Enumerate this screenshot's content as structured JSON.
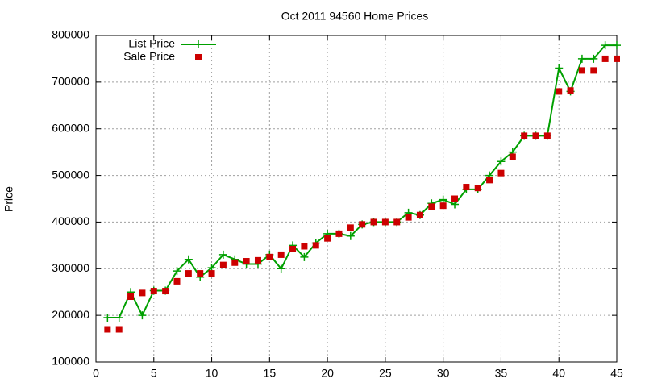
{
  "chart_data": {
    "type": "line",
    "title": "Oct 2011 94560 Home Prices",
    "y_label": "Price",
    "x": [
      1,
      2,
      3,
      4,
      5,
      6,
      7,
      8,
      9,
      10,
      11,
      12,
      13,
      14,
      15,
      16,
      17,
      18,
      19,
      20,
      21,
      22,
      23,
      24,
      25,
      26,
      27,
      28,
      29,
      30,
      31,
      32,
      33,
      34,
      35,
      36,
      37,
      38,
      39,
      40,
      41,
      42,
      43,
      44,
      45
    ],
    "series": [
      {
        "name": "List Price",
        "color": "#00a000",
        "style": "linespoints",
        "values": [
          195000,
          195000,
          250000,
          200000,
          253000,
          253000,
          295000,
          320000,
          282000,
          302000,
          330000,
          320000,
          310000,
          310000,
          330000,
          300000,
          350000,
          325000,
          355000,
          375000,
          375000,
          370000,
          395000,
          400000,
          400000,
          400000,
          420000,
          415000,
          440000,
          448000,
          438000,
          470000,
          470000,
          500000,
          530000,
          550000,
          585000,
          585000,
          585000,
          730000,
          680000,
          750000,
          750000,
          779000,
          779000
        ]
      },
      {
        "name": "Sale Price",
        "color": "#cc0000",
        "style": "points",
        "values": [
          170000,
          170000,
          240000,
          248000,
          252000,
          252000,
          273000,
          290000,
          290000,
          290000,
          308000,
          313000,
          316000,
          318000,
          325000,
          330000,
          342000,
          348000,
          350000,
          365000,
          375000,
          388000,
          395000,
          400000,
          400000,
          400000,
          410000,
          415000,
          433000,
          435000,
          450000,
          475000,
          473000,
          490000,
          505000,
          540000,
          585000,
          585000,
          585000,
          680000,
          682000,
          725000,
          725000,
          750000,
          750000
        ]
      }
    ],
    "xlim": [
      0,
      45
    ],
    "xticks": [
      0,
      5,
      10,
      15,
      20,
      25,
      30,
      35,
      40,
      45
    ],
    "ylim": [
      100000,
      800000
    ],
    "yticks": [
      100000,
      200000,
      300000,
      400000,
      500000,
      600000,
      700000,
      800000
    ],
    "grid": true,
    "legend": "top-left"
  }
}
